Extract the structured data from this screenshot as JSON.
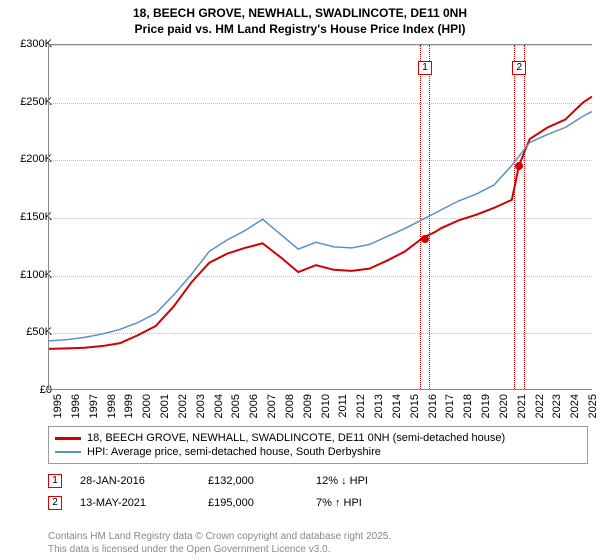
{
  "title": {
    "line1": "18, BEECH GROVE, NEWHALL, SWADLINCOTE, DE11 0NH",
    "line2": "Price paid vs. HM Land Registry's House Price Index (HPI)"
  },
  "chart": {
    "type": "line",
    "x_range": [
      1995,
      2025.5
    ],
    "y_range": [
      0,
      300000
    ],
    "ylabel_prefix": "£",
    "yticks": [
      0,
      50000,
      100000,
      150000,
      200000,
      250000,
      300000
    ],
    "ytick_labels": [
      "£0",
      "£50K",
      "£100K",
      "£150K",
      "£200K",
      "£250K",
      "£300K"
    ],
    "xticks": [
      1995,
      1996,
      1997,
      1998,
      1999,
      2000,
      2001,
      2002,
      2003,
      2004,
      2005,
      2006,
      2007,
      2008,
      2009,
      2010,
      2011,
      2012,
      2013,
      2014,
      2015,
      2016,
      2017,
      2018,
      2019,
      2020,
      2021,
      2022,
      2023,
      2024,
      2025
    ],
    "background_color": "#ffffff",
    "grid_color": "#bbbbbb",
    "axis_color": "#888888",
    "tick_fontsize": 11,
    "title_fontsize": 12,
    "series": [
      {
        "name": "property",
        "label": "18, BEECH GROVE, NEWHALL, SWADLINCOTE, DE11 0NH (semi-detached house)",
        "color": "#d00000",
        "line_width": 2,
        "points": [
          [
            1995,
            35000
          ],
          [
            1996,
            35500
          ],
          [
            1997,
            36000
          ],
          [
            1998,
            37500
          ],
          [
            1999,
            40000
          ],
          [
            2000,
            47000
          ],
          [
            2001,
            55000
          ],
          [
            2002,
            72000
          ],
          [
            2003,
            93000
          ],
          [
            2004,
            110000
          ],
          [
            2005,
            118000
          ],
          [
            2006,
            123000
          ],
          [
            2007,
            127000
          ],
          [
            2008,
            115000
          ],
          [
            2009,
            102000
          ],
          [
            2010,
            108000
          ],
          [
            2011,
            104000
          ],
          [
            2012,
            103000
          ],
          [
            2013,
            105000
          ],
          [
            2014,
            112000
          ],
          [
            2015,
            120000
          ],
          [
            2016,
            132000
          ],
          [
            2016.7,
            137000
          ],
          [
            2017,
            140000
          ],
          [
            2018,
            147000
          ],
          [
            2019,
            152000
          ],
          [
            2020,
            158000
          ],
          [
            2021,
            165000
          ],
          [
            2021.4,
            195000
          ],
          [
            2022,
            218000
          ],
          [
            2023,
            228000
          ],
          [
            2024,
            235000
          ],
          [
            2025,
            250000
          ],
          [
            2025.5,
            255000
          ]
        ]
      },
      {
        "name": "hpi",
        "label": "HPI: Average price, semi-detached house, South Derbyshire",
        "color": "#5b8fc7",
        "line_width": 1.5,
        "points": [
          [
            1995,
            42000
          ],
          [
            1996,
            43000
          ],
          [
            1997,
            45000
          ],
          [
            1998,
            48000
          ],
          [
            1999,
            52000
          ],
          [
            2000,
            58000
          ],
          [
            2001,
            66000
          ],
          [
            2002,
            82000
          ],
          [
            2003,
            100000
          ],
          [
            2004,
            120000
          ],
          [
            2005,
            130000
          ],
          [
            2006,
            138000
          ],
          [
            2007,
            148000
          ],
          [
            2008,
            135000
          ],
          [
            2009,
            122000
          ],
          [
            2010,
            128000
          ],
          [
            2011,
            124000
          ],
          [
            2012,
            123000
          ],
          [
            2013,
            126000
          ],
          [
            2014,
            133000
          ],
          [
            2015,
            140000
          ],
          [
            2016,
            148000
          ],
          [
            2017,
            156000
          ],
          [
            2018,
            164000
          ],
          [
            2019,
            170000
          ],
          [
            2020,
            178000
          ],
          [
            2021,
            195000
          ],
          [
            2022,
            215000
          ],
          [
            2023,
            222000
          ],
          [
            2024,
            228000
          ],
          [
            2025,
            238000
          ],
          [
            2025.5,
            242000
          ]
        ]
      }
    ],
    "sale_markers": [
      {
        "id": "1",
        "x": 2016.08,
        "y": 132000
      },
      {
        "id": "2",
        "x": 2021.37,
        "y": 195000
      }
    ],
    "marker_band_width_years": 0.6,
    "marker_box_color": "#d00000"
  },
  "legend": {
    "border_color": "#999999",
    "fontsize": 11
  },
  "transactions": [
    {
      "id": "1",
      "date": "28-JAN-2016",
      "price": "£132,000",
      "change_pct": "12%",
      "direction": "down",
      "arrow": "↓",
      "tag": "HPI"
    },
    {
      "id": "2",
      "date": "13-MAY-2021",
      "price": "£195,000",
      "change_pct": "7%",
      "direction": "up",
      "arrow": "↑",
      "tag": "HPI"
    }
  ],
  "footer": {
    "line1": "Contains HM Land Registry data © Crown copyright and database right 2025.",
    "line2": "This data is licensed under the Open Government Licence v3.0."
  },
  "colors": {
    "text": "#000000",
    "footer_text": "#888888",
    "marker_border": "#d00000"
  }
}
